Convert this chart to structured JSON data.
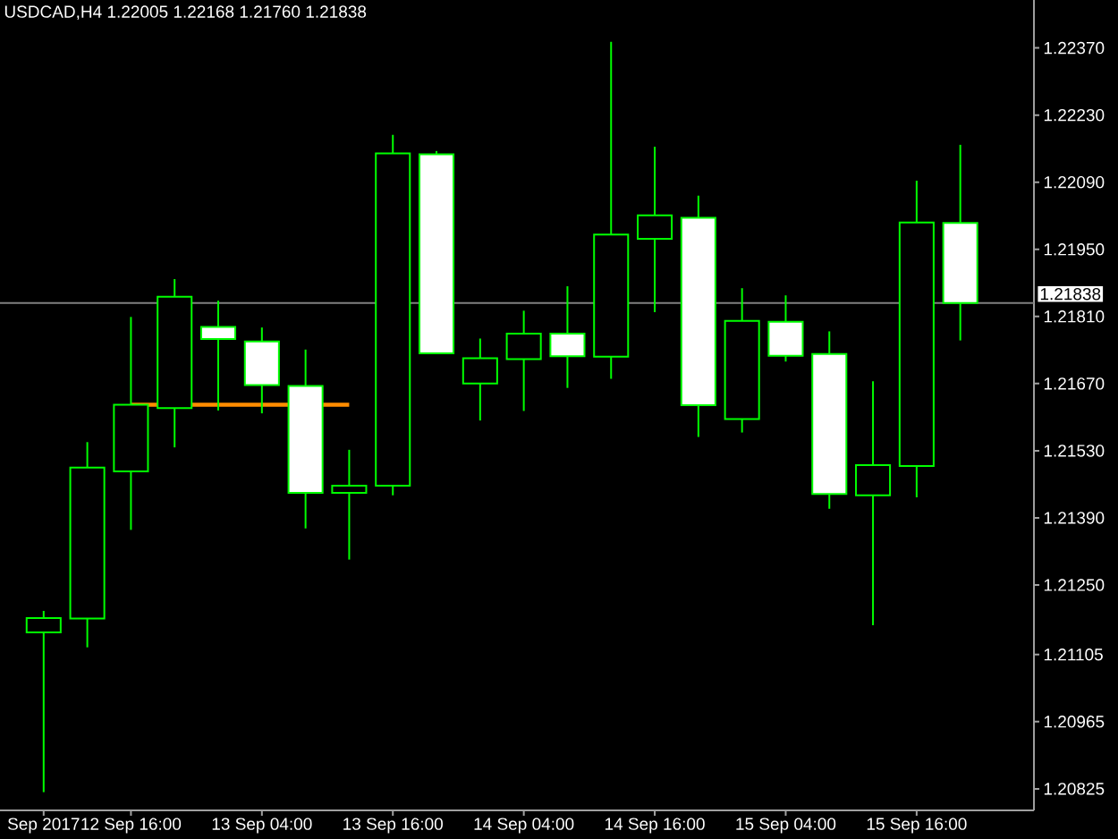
{
  "chart_data": {
    "type": "candlestick",
    "title": "USDCAD,H4 1.22005 1.22168 1.21760 1.21838",
    "x": [
      "2017-09-12T08:00",
      "2017-09-12T12:00",
      "2017-09-12T16:00",
      "2017-09-12T20:00",
      "2017-09-13T00:00",
      "2017-09-13T04:00",
      "2017-09-13T08:00",
      "2017-09-13T12:00",
      "2017-09-13T16:00",
      "2017-09-13T20:00",
      "2017-09-14T00:00",
      "2017-09-14T04:00",
      "2017-09-14T08:00",
      "2017-09-14T12:00",
      "2017-09-14T16:00",
      "2017-09-14T20:00",
      "2017-09-15T00:00",
      "2017-09-15T04:00",
      "2017-09-15T08:00",
      "2017-09-15T12:00",
      "2017-09-15T16:00",
      "2017-09-15T20:00"
    ],
    "ohlc": [
      [
        1.21151,
        1.21196,
        1.20818,
        1.21181
      ],
      [
        1.2118,
        1.21548,
        1.2112,
        1.21495
      ],
      [
        1.21487,
        1.21809,
        1.21365,
        1.21626
      ],
      [
        1.21619,
        1.21888,
        1.21537,
        1.21851
      ],
      [
        1.21788,
        1.21843,
        1.21614,
        1.21763
      ],
      [
        1.21758,
        1.21787,
        1.21608,
        1.21667
      ],
      [
        1.21665,
        1.21741,
        1.21368,
        1.21442
      ],
      [
        1.21442,
        1.21532,
        1.21303,
        1.21457
      ],
      [
        1.21457,
        1.22189,
        1.21437,
        1.2215
      ],
      [
        1.22148,
        1.22155,
        1.21733,
        1.21733
      ],
      [
        1.2167,
        1.21764,
        1.21593,
        1.21723
      ],
      [
        1.21721,
        1.21822,
        1.21613,
        1.21774
      ],
      [
        1.21774,
        1.21873,
        1.21661,
        1.21727
      ],
      [
        1.21726,
        1.22383,
        1.2168,
        1.21981
      ],
      [
        1.21972,
        1.22164,
        1.21819,
        1.22021
      ],
      [
        1.22016,
        1.22062,
        1.21559,
        1.21625
      ],
      [
        1.21596,
        1.21869,
        1.21568,
        1.21801
      ],
      [
        1.21799,
        1.21854,
        1.21716,
        1.21728
      ],
      [
        1.21732,
        1.21779,
        1.21409,
        1.2144
      ],
      [
        1.21437,
        1.21675,
        1.21166,
        1.215
      ],
      [
        1.21498,
        1.22093,
        1.21433,
        1.22006
      ],
      [
        1.22005,
        1.22168,
        1.2176,
        1.21838
      ]
    ],
    "color": "#00ff00",
    "colors": [
      "#000000",
      "#000000",
      "#000000",
      "#000000",
      "#ffffff",
      "#ffffff",
      "#ffffff",
      "#000000",
      "#000000",
      "#ffffff",
      "#000000",
      "#000000",
      "#ffffff",
      "#000000",
      "#000000",
      "#ffffff",
      "#000000",
      "#ffffff",
      "#ffffff",
      "#000000",
      "#000000",
      "#ffffff"
    ],
    "series": [
      {
        "type": "line",
        "color": "#ff8c00",
        "x": [
          "2017-09-12T16:00",
          "2017-09-13T12:00"
        ],
        "values": [
          1.21626,
          1.21626
        ]
      }
    ],
    "ref_lines": [
      {
        "axis": "y",
        "value": 1.21838,
        "label": "1.21838",
        "color": "#808080"
      }
    ],
    "xlim": [
      "2017-09-12T04:00",
      "2017-09-16T02:45"
    ],
    "ylim": [
      1.2078,
      1.2247
    ],
    "xticks": [
      {
        "value": "2017-09-12T08:00",
        "label": "Sep 2017"
      },
      {
        "value": "2017-09-12T16:00",
        "label": "12 Sep 16:00"
      },
      {
        "value": "2017-09-13T04:00",
        "label": "13 Sep 04:00"
      },
      {
        "value": "2017-09-13T16:00",
        "label": "13 Sep 16:00"
      },
      {
        "value": "2017-09-14T04:00",
        "label": "14 Sep 04:00"
      },
      {
        "value": "2017-09-14T16:00",
        "label": "14 Sep 16:00"
      },
      {
        "value": "2017-09-15T04:00",
        "label": "15 Sep 04:00"
      },
      {
        "value": "2017-09-15T16:00",
        "label": "15 Sep 16:00"
      }
    ],
    "yticks": [
      {
        "value": 1.2237,
        "label": "1.22370"
      },
      {
        "value": 1.2223,
        "label": "1.22230"
      },
      {
        "value": 1.2209,
        "label": "1.22090"
      },
      {
        "value": 1.2195,
        "label": "1.21950"
      },
      {
        "value": 1.2181,
        "label": "1.21810"
      },
      {
        "value": 1.2167,
        "label": "1.21670"
      },
      {
        "value": 1.2153,
        "label": "1.21530"
      },
      {
        "value": 1.2139,
        "label": "1.21390"
      },
      {
        "value": 1.2125,
        "label": "1.21250"
      },
      {
        "value": 1.21105,
        "label": "1.21105"
      },
      {
        "value": 1.20965,
        "label": "1.20965"
      },
      {
        "value": 1.20825,
        "label": "1.20825"
      }
    ]
  }
}
